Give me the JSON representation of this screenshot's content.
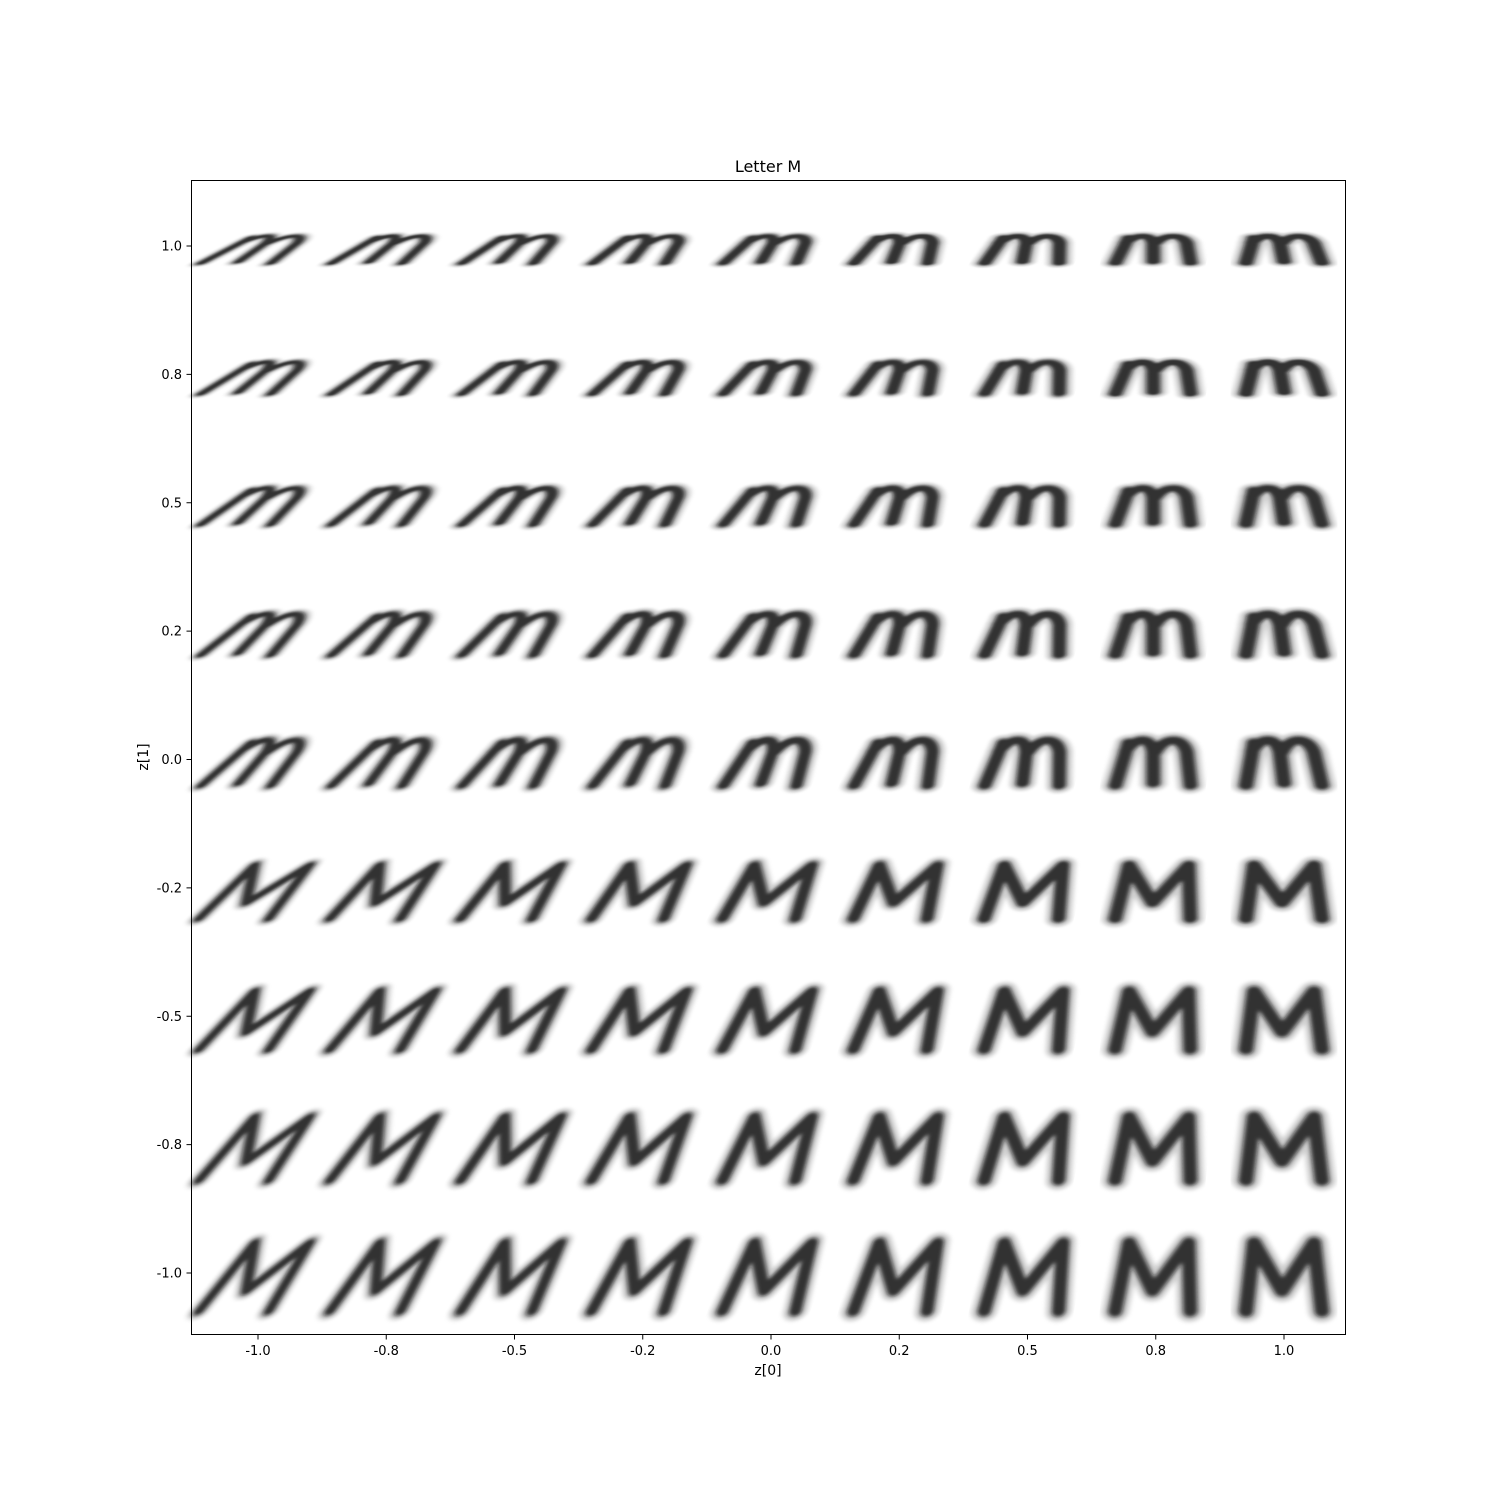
{
  "chart_data": {
    "type": "image-grid",
    "title": "Letter M",
    "xlabel": "z[0]",
    "ylabel": "z[1]",
    "x_ticks": [
      "-1.0",
      "-0.8",
      "-0.5",
      "-0.2",
      "0.0",
      "0.2",
      "0.5",
      "0.8",
      "1.0"
    ],
    "y_ticks": [
      "1.0",
      "0.8",
      "0.5",
      "0.2",
      "0.0",
      "-0.2",
      "-0.5",
      "-0.8",
      "-1.0"
    ],
    "x": [
      -1.0,
      -0.75,
      -0.5,
      -0.25,
      0.0,
      0.25,
      0.5,
      0.75,
      1.0
    ],
    "y": [
      1.0,
      0.75,
      0.5,
      0.25,
      0.0,
      -0.25,
      -0.5,
      -0.75,
      -1.0
    ],
    "grid": false,
    "cell_content": "decoded glyph image (grayscale)",
    "colors": {
      "ink": "#111111",
      "background": "#ffffff"
    }
  }
}
